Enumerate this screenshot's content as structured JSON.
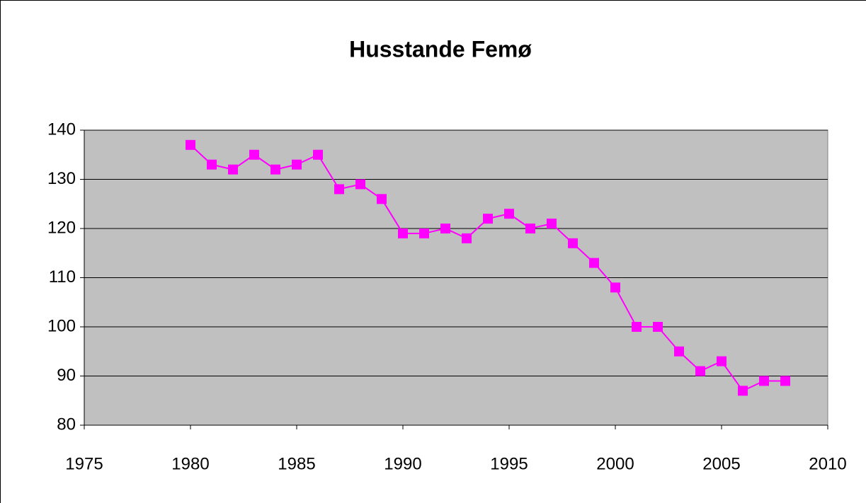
{
  "chart_data": {
    "type": "line",
    "title": "Husstande Femø",
    "x": [
      1980,
      1981,
      1982,
      1983,
      1984,
      1985,
      1986,
      1987,
      1988,
      1989,
      1990,
      1991,
      1992,
      1993,
      1994,
      1995,
      1996,
      1997,
      1998,
      1999,
      2000,
      2001,
      2002,
      2003,
      2004,
      2005,
      2006,
      2007,
      2008
    ],
    "series": [
      {
        "name": "Husstande",
        "color": "#ff00ff",
        "values": [
          137,
          133,
          132,
          135,
          132,
          133,
          135,
          128,
          129,
          126,
          119,
          119,
          120,
          118,
          122,
          123,
          120,
          121,
          117,
          113,
          108,
          100,
          100,
          95,
          91,
          93,
          87,
          89,
          89
        ]
      }
    ],
    "xlim": [
      1975,
      2010
    ],
    "xticks": [
      1975,
      1980,
      1985,
      1990,
      1995,
      2000,
      2005,
      2010
    ],
    "ylim": [
      80,
      140
    ],
    "yticks": [
      80,
      90,
      100,
      110,
      120,
      130,
      140
    ],
    "grid": true,
    "plot_background": "#c0c0c0"
  }
}
